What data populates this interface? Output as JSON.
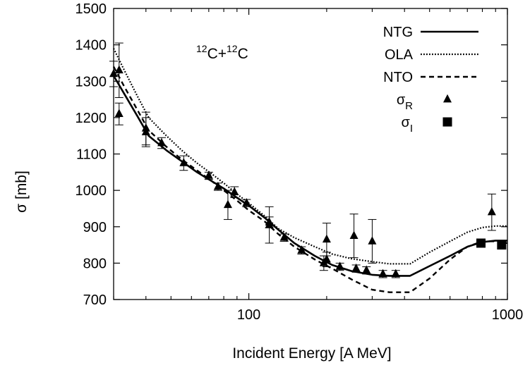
{
  "chart_data": {
    "type": "line",
    "xscale": "log",
    "xlim": [
      30,
      1000
    ],
    "ylim": [
      700,
      1500
    ],
    "xlabel": "Incident Energy [A MeV]",
    "ylabel": "σ [mb]",
    "x_ticks": [
      100,
      1000
    ],
    "x_tick_labels": [
      "100",
      "1000"
    ],
    "y_ticks": [
      700,
      800,
      900,
      1000,
      1100,
      1200,
      1300,
      1400,
      1500
    ],
    "y_tick_labels": [
      "700",
      "800",
      "900",
      "1000",
      "1100",
      "1200",
      "1300",
      "1400",
      "1500"
    ],
    "annotation": {
      "base": "C+",
      "sup1": "12",
      "sup2": "12",
      "end": "C"
    },
    "legend_position": "top-right",
    "series": [
      {
        "name": "NTG",
        "style": "solid",
        "x": [
          30,
          33,
          37,
          41,
          48,
          55,
          63,
          72,
          80,
          90,
          100,
          115,
          130,
          150,
          180,
          210,
          250,
          300,
          350,
          420,
          500,
          600,
          700,
          800,
          900,
          1000
        ],
        "y": [
          1315,
          1265,
          1205,
          1150,
          1110,
          1080,
          1050,
          1025,
          1005,
          980,
          958,
          925,
          892,
          855,
          820,
          795,
          778,
          768,
          765,
          765,
          792,
          820,
          845,
          858,
          862,
          862
        ]
      },
      {
        "name": "OLA",
        "style": "dotted",
        "x": [
          30,
          33,
          37,
          41,
          48,
          55,
          63,
          72,
          80,
          90,
          100,
          115,
          130,
          150,
          180,
          210,
          250,
          300,
          350,
          420,
          500,
          600,
          700,
          800,
          900,
          1000
        ],
        "y": [
          1390,
          1330,
          1260,
          1200,
          1150,
          1110,
          1075,
          1045,
          1020,
          990,
          965,
          930,
          895,
          870,
          845,
          825,
          812,
          804,
          798,
          798,
          830,
          860,
          885,
          898,
          902,
          902
        ]
      },
      {
        "name": "NTO",
        "style": "dashed",
        "x": [
          30,
          33,
          37,
          41,
          48,
          55,
          63,
          72,
          80,
          90,
          100,
          115,
          130,
          150,
          180,
          210,
          250,
          300,
          350,
          420,
          500,
          600,
          700,
          800,
          900,
          1000
        ],
        "y": [
          1340,
          1285,
          1222,
          1165,
          1120,
          1085,
          1055,
          1025,
          1000,
          972,
          945,
          915,
          880,
          845,
          810,
          785,
          755,
          727,
          720,
          720,
          758,
          810,
          845,
          860,
          860,
          855
        ]
      }
    ],
    "points": [
      {
        "name": "σ_R",
        "label": "σ",
        "sub": "R",
        "marker": "triangle",
        "data": [
          {
            "x": 30,
            "y": 1320,
            "err": 35
          },
          {
            "x": 31.5,
            "y": 1330,
            "err": 75
          },
          {
            "x": 31.5,
            "y": 1210,
            "err": 30
          },
          {
            "x": 40,
            "y": 1170,
            "err": 45
          },
          {
            "x": 40,
            "y": 1160,
            "err": 40
          },
          {
            "x": 46,
            "y": 1130,
            "err": 15
          },
          {
            "x": 56,
            "y": 1075,
            "err": 20
          },
          {
            "x": 70,
            "y": 1040,
            "err": 10
          },
          {
            "x": 76,
            "y": 1010,
            "err": 10
          },
          {
            "x": 83,
            "y": 960,
            "err": 40
          },
          {
            "x": 88,
            "y": 995,
            "err": 15
          },
          {
            "x": 98,
            "y": 965,
            "err": 10
          },
          {
            "x": 120,
            "y": 912,
            "err": 15
          },
          {
            "x": 120,
            "y": 905,
            "err": 50
          },
          {
            "x": 137,
            "y": 870,
            "err": 10
          },
          {
            "x": 160,
            "y": 835,
            "err": 10
          },
          {
            "x": 195,
            "y": 800,
            "err": 20
          },
          {
            "x": 200,
            "y": 865,
            "err": 45
          },
          {
            "x": 200,
            "y": 810,
            "err": 20
          },
          {
            "x": 225,
            "y": 790,
            "err": 10
          },
          {
            "x": 255,
            "y": 875,
            "err": 60
          },
          {
            "x": 260,
            "y": 785,
            "err": 10
          },
          {
            "x": 285,
            "y": 780,
            "err": 10
          },
          {
            "x": 300,
            "y": 860,
            "err": 60
          },
          {
            "x": 330,
            "y": 770,
            "err": 10
          },
          {
            "x": 370,
            "y": 770,
            "err": 10
          },
          {
            "x": 870,
            "y": 940,
            "err": 50
          }
        ]
      },
      {
        "name": "σ_I",
        "label": "σ",
        "sub": "I",
        "marker": "square",
        "data": [
          {
            "x": 790,
            "y": 855,
            "err": 0
          },
          {
            "x": 950,
            "y": 850,
            "err": 0
          }
        ]
      }
    ]
  }
}
